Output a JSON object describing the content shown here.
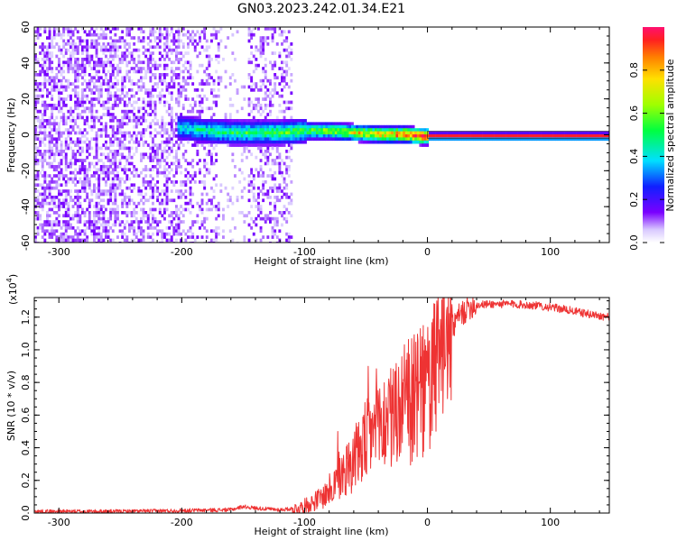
{
  "title": "GN03.2023.242.01.34.E21",
  "charts": [
    {
      "id": "spectrogram",
      "type": "heatmap",
      "xlabel": "Height of straight line (km)",
      "ylabel": "Frequency (Hz)",
      "xlim": [
        -320,
        148
      ],
      "ylim": [
        -60,
        60
      ],
      "xticks": [
        "-300",
        "-200",
        "-100",
        "0",
        "100"
      ],
      "xtick_values": [
        -300,
        -200,
        -100,
        0,
        100
      ],
      "yticks": [
        "60",
        "40",
        "20",
        "0",
        "-20",
        "-40",
        "-60"
      ],
      "ytick_values": [
        60,
        40,
        20,
        0,
        -20,
        -40,
        -60
      ],
      "grid": false,
      "noise_region_km": [
        -320,
        -110
      ],
      "noise_gap_km": [
        -170,
        -148
      ],
      "ridge": {
        "x": [
          -205,
          -180,
          -160,
          -140,
          -120,
          -100,
          -80,
          -60,
          -40,
          -20,
          -5,
          0,
          148
        ],
        "frequency_hz": [
          5,
          3,
          2,
          2,
          2,
          3,
          3,
          2,
          1,
          1,
          0,
          0,
          0
        ],
        "amplitude": [
          0.3,
          0.35,
          0.4,
          0.4,
          0.45,
          0.45,
          0.55,
          0.6,
          0.7,
          0.8,
          0.9,
          0.95,
          0.95
        ]
      },
      "colorbar": {
        "label": "Normalized spectral amplitude",
        "ticks": [
          "0.0",
          "0.2",
          "0.4",
          "0.6",
          "0.8"
        ],
        "tick_values": [
          0,
          0.2,
          0.4,
          0.6,
          0.8
        ],
        "range": [
          0,
          1
        ]
      }
    },
    {
      "id": "snr",
      "type": "line",
      "xlabel": "Height of straight line (km)",
      "ylabel": "SNR (10 * v/v)",
      "scale_label": "(x10",
      "scale_exponent": "4",
      "scale_close": ")",
      "xlim": [
        -320,
        148
      ],
      "ylim": [
        0,
        1.32
      ],
      "xticks": [
        "-300",
        "-200",
        "-100",
        "0",
        "100"
      ],
      "xtick_values": [
        -300,
        -200,
        -100,
        0,
        100
      ],
      "yticks": [
        "0.0",
        "0.2",
        "0.4",
        "0.6",
        "0.8",
        "1.0",
        "1.2"
      ],
      "ytick_values": [
        0,
        0.2,
        0.4,
        0.6,
        0.8,
        1.0,
        1.2
      ],
      "grid": false,
      "series": [
        {
          "color": "#ee3333",
          "x": [
            -320,
            -250,
            -200,
            -160,
            -150,
            -140,
            -120,
            -105,
            -95,
            -85,
            -75,
            -65,
            -55,
            -45,
            -35,
            -25,
            -15,
            -5,
            5,
            15,
            25,
            35,
            50,
            70,
            90,
            110,
            130,
            148
          ],
          "y": [
            0.01,
            0.01,
            0.015,
            0.02,
            0.04,
            0.03,
            0.02,
            0.03,
            0.06,
            0.1,
            0.18,
            0.28,
            0.38,
            0.5,
            0.55,
            0.62,
            0.68,
            0.72,
            0.85,
            1.05,
            1.2,
            1.27,
            1.28,
            1.28,
            1.27,
            1.25,
            1.22,
            1.2
          ]
        }
      ]
    }
  ]
}
